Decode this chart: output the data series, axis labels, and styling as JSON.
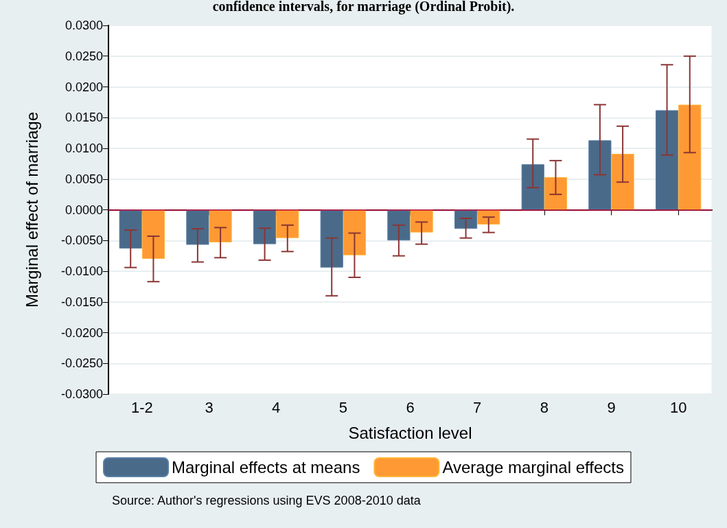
{
  "chart_data": {
    "type": "bar",
    "title": "confidence intervals, for marriage (Ordinal Probit).",
    "xlabel": "Satisfaction level",
    "ylabel": "Marginal effect of marriage",
    "categories": [
      "1-2",
      "3",
      "4",
      "5",
      "6",
      "7",
      "8",
      "9",
      "10"
    ],
    "series": [
      {
        "name": "Marginal effects at means",
        "color": "#4a6a8a",
        "values": [
          -0.0063,
          -0.0057,
          -0.0056,
          -0.0094,
          -0.005,
          -0.0031,
          0.0074,
          0.0113,
          0.0162
        ],
        "errors": [
          [
            -0.0094,
            -0.0033
          ],
          [
            -0.0085,
            -0.0031
          ],
          [
            -0.0082,
            -0.003
          ],
          [
            -0.014,
            -0.0046
          ],
          [
            -0.0075,
            -0.0025
          ],
          [
            -0.0046,
            -0.0014
          ],
          [
            0.0036,
            0.0115
          ],
          [
            0.0057,
            0.0171
          ],
          [
            0.0089,
            0.0236
          ]
        ]
      },
      {
        "name": "Average marginal effects",
        "color": "#ff9933",
        "values": [
          -0.008,
          -0.0053,
          -0.0046,
          -0.0074,
          -0.0037,
          -0.0024,
          0.0053,
          0.0091,
          0.0171
        ],
        "errors": [
          [
            -0.0117,
            -0.0043
          ],
          [
            -0.0078,
            -0.0029
          ],
          [
            -0.0068,
            -0.0025
          ],
          [
            -0.011,
            -0.0038
          ],
          [
            -0.0056,
            -0.002
          ],
          [
            -0.0037,
            -0.0012
          ],
          [
            0.0025,
            0.008
          ],
          [
            0.0045,
            0.0136
          ],
          [
            0.0093,
            0.025
          ]
        ]
      }
    ],
    "ylim": [
      -0.03,
      0.03
    ],
    "yticks": [
      {
        "value": -0.03,
        "label": "-0.0300"
      },
      {
        "value": -0.025,
        "label": "-0.0250"
      },
      {
        "value": -0.02,
        "label": "-0.0200"
      },
      {
        "value": -0.015,
        "label": "-0.0150"
      },
      {
        "value": -0.01,
        "label": "-0.0100"
      },
      {
        "value": -0.005,
        "label": "-0.0050"
      },
      {
        "value": 0,
        "label": "0.0000"
      },
      {
        "value": 0.005,
        "label": "0.0050"
      },
      {
        "value": 0.01,
        "label": "0.0100"
      },
      {
        "value": 0.015,
        "label": "0.0150"
      },
      {
        "value": 0.02,
        "label": "0.0200"
      },
      {
        "value": 0.025,
        "label": "0.0250"
      },
      {
        "value": 0.03,
        "label": "0.0300"
      }
    ],
    "ref_lines": [
      {
        "axis": "y",
        "value": 0,
        "color": "#cc1144"
      }
    ],
    "grid": "y",
    "legend": "bottom",
    "annotations": [
      "Source: Author's regressions using EVS 2008-2010 data"
    ]
  }
}
